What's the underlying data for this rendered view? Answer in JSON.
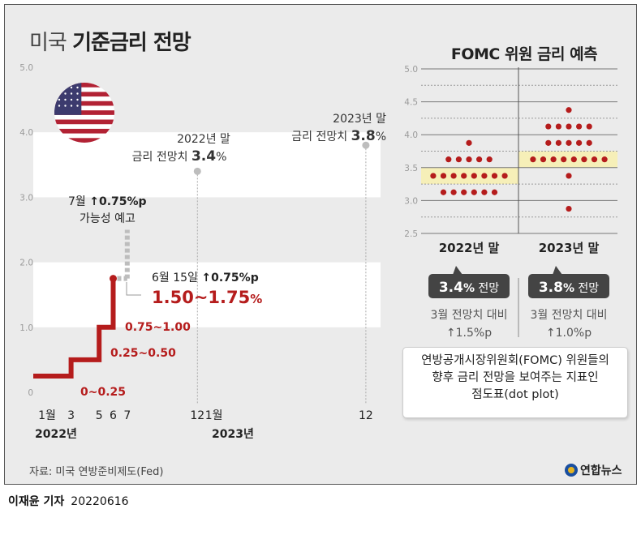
{
  "title": {
    "light": "미국",
    "bold": "기준금리 전망"
  },
  "chart_data": [
    {
      "type": "line",
      "step": true,
      "ylim": [
        0,
        5.0
      ],
      "yticks": [
        "0",
        "1.0",
        "2.0",
        "3.0",
        "4.0",
        "5.0"
      ],
      "xticks": [
        "1월",
        "3",
        "5",
        "6",
        "7",
        "12",
        "1월",
        "12"
      ],
      "years": [
        "2022년",
        "2023년"
      ],
      "series": [
        {
          "values": [
            {
              "x": "2022-01",
              "y": 0.25
            },
            {
              "x": "2022-03",
              "y": 0.5
            },
            {
              "x": "2022-05",
              "y": 1.0
            },
            {
              "x": "2022-06",
              "y": 1.75
            }
          ]
        }
      ],
      "projection": [
        {
          "x": "2022-07",
          "y": 2.5
        },
        {
          "x": "2022-12",
          "y": 3.4
        },
        {
          "x": "2023-12",
          "y": 3.8
        }
      ],
      "step_labels": [
        "0~0.25",
        "0.25~0.50",
        "0.75~1.00",
        "1.50~1.75%"
      ],
      "annotations": {
        "jun": {
          "date": "6월 15일",
          "change": "↑0.75%p",
          "range_num": "1.50~1.75",
          "range_unit": "%"
        },
        "jul": {
          "l1a": "7월",
          "l1b": "↑0.75%p",
          "l2": "가능성 예고"
        },
        "end2022": {
          "l1": "2022년 말",
          "l2a": "금리 전망치",
          "l2b": "3.4",
          "l2c": "%"
        },
        "end2023": {
          "l1": "2023년 말",
          "l2a": "금리 전망치",
          "l2b": "3.8",
          "l2c": "%"
        }
      }
    },
    {
      "type": "scatter",
      "title": "FOMC 위원 금리 예측",
      "ylim": [
        2.5,
        5.0
      ],
      "yticks": [
        "2.5",
        "3.0",
        "3.5",
        "4.0",
        "4.5",
        "5.0"
      ],
      "categories": [
        "2022년 말",
        "2023년 말"
      ],
      "highlight_band": [
        3.25,
        3.5,
        3.75
      ],
      "dots": [
        [
          {
            "y": 3.875,
            "n": 1
          },
          {
            "y": 3.625,
            "n": 5
          },
          {
            "y": 3.375,
            "n": 8
          },
          {
            "y": 3.125,
            "n": 6
          }
        ],
        [
          {
            "y": 4.375,
            "n": 1
          },
          {
            "y": 4.125,
            "n": 5
          },
          {
            "y": 3.875,
            "n": 5
          },
          {
            "y": 3.625,
            "n": 8
          },
          {
            "y": 3.375,
            "n": 1
          },
          {
            "y": 2.875,
            "n": 1
          }
        ]
      ],
      "medians": [
        {
          "num": "3.4",
          "unit": "%",
          "suffix": "전망",
          "cmp1": "3월 전망치 대비",
          "cmp2": "↑1.5%p"
        },
        {
          "num": "3.8",
          "unit": "%",
          "suffix": "전망",
          "cmp1": "3월 전망치 대비",
          "cmp2": "↑1.0%p"
        }
      ]
    }
  ],
  "info": {
    "line1": "연방공개시장위원회(FOMC) 위원들의",
    "line2": "향후 금리 전망을 보여주는 지표인",
    "line3": "점도표(dot plot)"
  },
  "source": "자료: 미국 연방준비제도(Fed)",
  "logo": "연합뉴스",
  "byline": {
    "author": "이재윤 기자",
    "date": "20220616"
  },
  "colors": {
    "red": "#b51c1c",
    "gray": "#bdbdbd",
    "band": "#f6efb8",
    "dark": "#444444",
    "flag_blue": "#3c3b6e",
    "flag_red": "#b22234"
  }
}
